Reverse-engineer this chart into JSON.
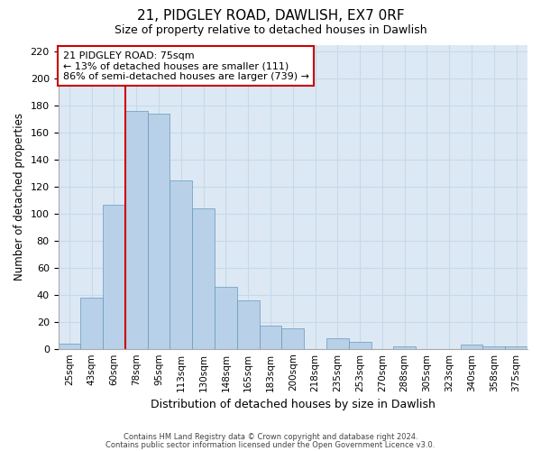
{
  "title": "21, PIDGLEY ROAD, DAWLISH, EX7 0RF",
  "subtitle": "Size of property relative to detached houses in Dawlish",
  "xlabel": "Distribution of detached houses by size in Dawlish",
  "ylabel": "Number of detached properties",
  "bar_color": "#b8d0e8",
  "bar_edge_color": "#6699bb",
  "grid_color": "#c8d8e8",
  "bin_labels": [
    "25sqm",
    "43sqm",
    "60sqm",
    "78sqm",
    "95sqm",
    "113sqm",
    "130sqm",
    "148sqm",
    "165sqm",
    "183sqm",
    "200sqm",
    "218sqm",
    "235sqm",
    "253sqm",
    "270sqm",
    "288sqm",
    "305sqm",
    "323sqm",
    "340sqm",
    "358sqm",
    "375sqm"
  ],
  "bar_values": [
    4,
    38,
    107,
    176,
    174,
    125,
    104,
    46,
    36,
    17,
    15,
    0,
    8,
    5,
    0,
    2,
    0,
    0,
    3,
    2,
    2
  ],
  "ylim": [
    0,
    225
  ],
  "yticks": [
    0,
    20,
    40,
    60,
    80,
    100,
    120,
    140,
    160,
    180,
    200,
    220
  ],
  "vline_color": "#cc0000",
  "annotation_text": "21 PIDGLEY ROAD: 75sqm\n← 13% of detached houses are smaller (111)\n86% of semi-detached houses are larger (739) →",
  "annotation_box_color": "#ffffff",
  "annotation_box_edge": "#cc0000",
  "footer_line1": "Contains HM Land Registry data © Crown copyright and database right 2024.",
  "footer_line2": "Contains public sector information licensed under the Open Government Licence v3.0.",
  "background_color": "#dce9f5",
  "fig_bg_color": "#ffffff"
}
